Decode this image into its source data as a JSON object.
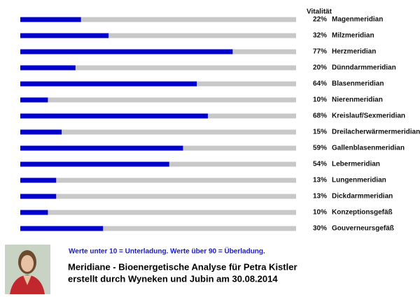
{
  "chart_data": {
    "type": "bar",
    "orientation": "horizontal",
    "xlabel": "Vitalität",
    "categories": [
      "Magenmeridian",
      "Milzmeridian",
      "Herzmeridian",
      "Dünndarmmeridian",
      "Blasenmeridian",
      "Nierenmeridian",
      "Kreislauf/Sexmeridian",
      "Dreilacherwärmermeridian",
      "Gallenblasenmeridian",
      "Lebermeridian",
      "Lungenmeridian",
      "Dickdarmmeridian",
      "Konzeptionsgefäß",
      "Gouverneursgefäß"
    ],
    "values": [
      22,
      32,
      77,
      20,
      64,
      10,
      68,
      15,
      59,
      54,
      13,
      13,
      10,
      30
    ],
    "value_labels": [
      "22%",
      "32%",
      "77%",
      "20%",
      "64%",
      "10%",
      "68%",
      "15%",
      "59%",
      "54%",
      "13%",
      "13%",
      "10%",
      "30%"
    ],
    "color": "#0000cc",
    "track_color": "#c8c8c8",
    "xlim": [
      0,
      100
    ],
    "annotation": "Werte unter 10 = Unterladung. Werte über 90 = Überladung.",
    "title": "Meridiane - Bioenergetische Analyse für Petra Kistler",
    "subtitle": "erstellt durch Wyneken und Jubin am 30.08.2014"
  }
}
